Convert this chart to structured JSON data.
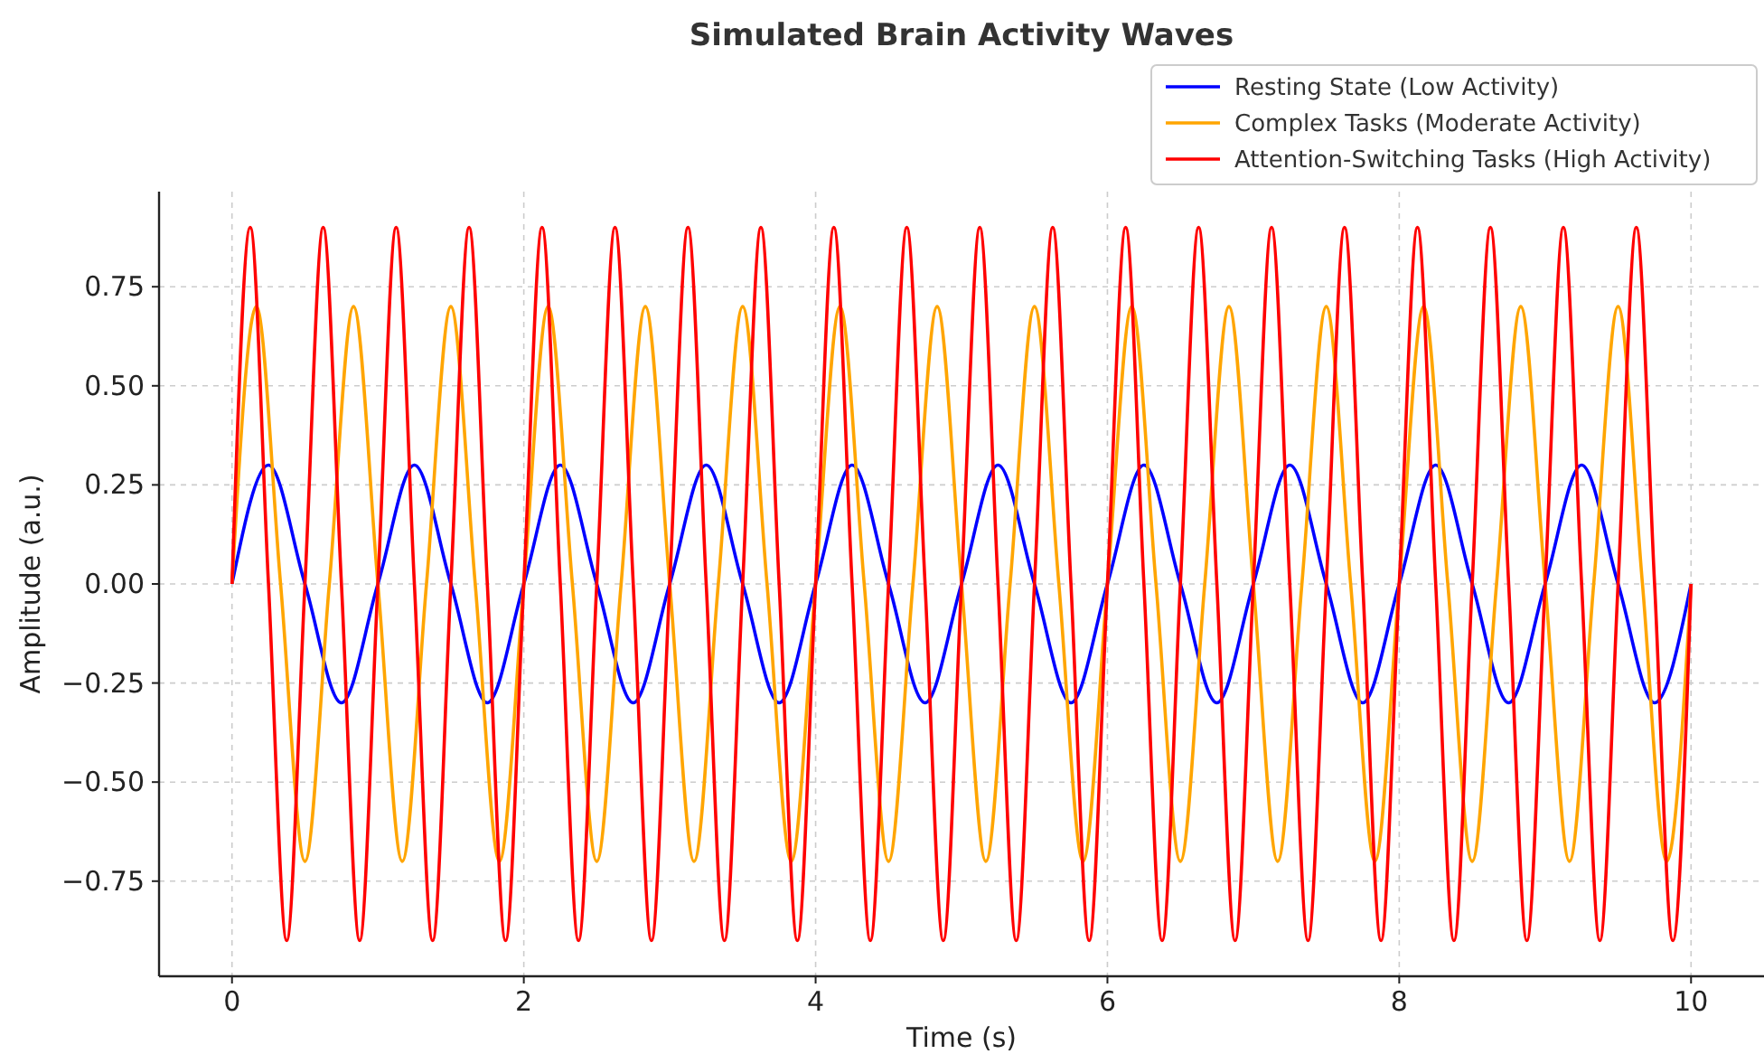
{
  "chart_data": {
    "type": "line",
    "title": "Simulated Brain Activity Waves",
    "xlabel": "Time (s)",
    "ylabel": "Amplitude (a.u.)",
    "xlim": [
      -0.5,
      10.5
    ],
    "ylim": [
      -0.99,
      0.99
    ],
    "xticks": [
      0,
      2,
      4,
      6,
      8,
      10
    ],
    "yticks": [
      {
        "value": -0.75,
        "label": "−0.75"
      },
      {
        "value": -0.5,
        "label": "−0.50"
      },
      {
        "value": -0.25,
        "label": "−0.25"
      },
      {
        "value": 0,
        "label": "0.00"
      },
      {
        "value": 0.25,
        "label": "0.25"
      },
      {
        "value": 0.5,
        "label": "0.50"
      },
      {
        "value": 0.75,
        "label": "0.75"
      }
    ],
    "grid": true,
    "legend": "top right",
    "line_style": "solid",
    "series": [
      {
        "name": "Resting State (Low Activity)",
        "color": "#0000ff",
        "x": [
          0,
          0.25,
          0.5,
          0.75,
          1,
          1.25,
          1.5,
          1.75,
          2,
          2.25,
          2.5,
          2.75,
          3,
          3.25,
          3.5,
          3.75,
          4,
          4.25,
          4.5,
          4.75,
          5,
          5.25,
          5.5,
          5.75,
          6,
          6.25,
          6.5,
          6.75,
          7,
          7.25,
          7.5,
          7.75,
          8,
          8.25,
          8.5,
          8.75,
          9,
          9.25,
          9.5,
          9.75,
          10
        ],
        "values": [
          0,
          0.3,
          0,
          -0.3,
          0,
          0.3,
          0,
          -0.3,
          0,
          0.3,
          0,
          -0.3,
          0,
          0.3,
          0,
          -0.3,
          0,
          0.3,
          0,
          -0.3,
          0,
          0.3,
          0,
          -0.3,
          0,
          0.3,
          0,
          -0.3,
          0,
          0.3,
          0,
          -0.3,
          0,
          0.3,
          0,
          -0.3,
          0,
          0.3,
          0,
          -0.3,
          0
        ]
      },
      {
        "name": "Complex Tasks (Moderate Activity)",
        "color": "#ffa500",
        "x": [
          0,
          0.167,
          0.333,
          0.5,
          0.667,
          0.833,
          1,
          1.167,
          1.333,
          1.5,
          1.667,
          1.833,
          2,
          2.167,
          2.333,
          2.5,
          2.667,
          2.833,
          3,
          3.167,
          3.333,
          3.5,
          3.667,
          3.833,
          4,
          4.167,
          4.333,
          4.5,
          4.667,
          4.833,
          5,
          5.167,
          5.333,
          5.5,
          5.667,
          5.833,
          6,
          6.167,
          6.333,
          6.5,
          6.667,
          6.833,
          7,
          7.167,
          7.333,
          7.5,
          7.667,
          7.833,
          8,
          8.167,
          8.333,
          8.5,
          8.667,
          8.833,
          9,
          9.167,
          9.333,
          9.5,
          9.667,
          9.833,
          10
        ],
        "values": [
          0,
          0.7,
          0,
          -0.7,
          0,
          0.7,
          0,
          -0.7,
          0,
          0.7,
          0,
          -0.7,
          0,
          0.7,
          0,
          -0.7,
          0,
          0.7,
          0,
          -0.7,
          0,
          0.7,
          0,
          -0.7,
          0,
          0.7,
          0,
          -0.7,
          0,
          0.7,
          0,
          -0.7,
          0,
          0.7,
          0,
          -0.7,
          0,
          0.7,
          0,
          -0.7,
          0,
          0.7,
          0,
          -0.7,
          0,
          0.7,
          0,
          -0.7,
          0,
          0.7,
          0,
          -0.7,
          0,
          0.7,
          0,
          -0.7,
          0,
          0.7,
          0,
          -0.7,
          0
        ]
      },
      {
        "name": "Attention-Switching Tasks (High Activity)",
        "color": "#ff0000",
        "x": [
          0,
          0.125,
          0.25,
          0.375,
          0.5,
          0.625,
          0.75,
          0.875,
          1,
          1.125,
          1.25,
          1.375,
          1.5,
          1.625,
          1.75,
          1.875,
          2,
          2.125,
          2.25,
          2.375,
          2.5,
          2.625,
          2.75,
          2.875,
          3,
          3.125,
          3.25,
          3.375,
          3.5,
          3.625,
          3.75,
          3.875,
          4,
          4.125,
          4.25,
          4.375,
          4.5,
          4.625,
          4.75,
          4.875,
          5,
          5.125,
          5.25,
          5.375,
          5.5,
          5.625,
          5.75,
          5.875,
          6,
          6.125,
          6.25,
          6.375,
          6.5,
          6.625,
          6.75,
          6.875,
          7,
          7.125,
          7.25,
          7.375,
          7.5,
          7.625,
          7.75,
          7.875,
          8,
          8.125,
          8.25,
          8.375,
          8.5,
          8.625,
          8.75,
          8.875,
          9,
          9.125,
          9.25,
          9.375,
          9.5,
          9.625,
          9.75,
          9.875,
          10
        ],
        "values": [
          0,
          0.9,
          0,
          -0.9,
          0,
          0.9,
          0,
          -0.9,
          0,
          0.9,
          0,
          -0.9,
          0,
          0.9,
          0,
          -0.9,
          0,
          0.9,
          0,
          -0.9,
          0,
          0.9,
          0,
          -0.9,
          0,
          0.9,
          0,
          -0.9,
          0,
          0.9,
          0,
          -0.9,
          0,
          0.9,
          0,
          -0.9,
          0,
          0.9,
          0,
          -0.9,
          0,
          0.9,
          0,
          -0.9,
          0,
          0.9,
          0,
          -0.9,
          0,
          0.9,
          0,
          -0.9,
          0,
          0.9,
          0,
          -0.9,
          0,
          0.9,
          0,
          -0.9,
          0,
          0.9,
          0,
          -0.9,
          0,
          0.9,
          0,
          -0.9,
          0,
          0.9,
          0,
          -0.9,
          0,
          0.9,
          0,
          -0.9,
          0,
          0.9,
          0,
          -0.9,
          0
        ]
      }
    ]
  }
}
